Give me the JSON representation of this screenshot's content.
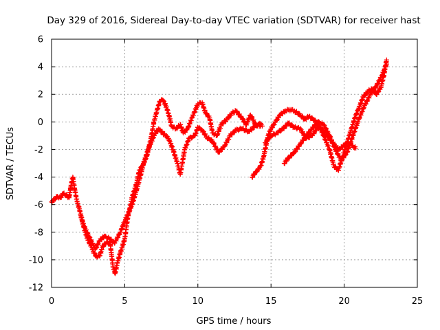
{
  "chart_data": {
    "type": "scatter",
    "title": "Day 329 of 2016, Sidereal Day-to-day VTEC variation (SDTVAR) for receiver hast",
    "xlabel": "GPS time / hours",
    "ylabel": "SDTVAR / TECUs",
    "xlim": [
      0,
      25
    ],
    "ylim": [
      -12,
      6
    ],
    "xticks": [
      0,
      5,
      10,
      15,
      20,
      25
    ],
    "yticks": [
      -12,
      -10,
      -8,
      -6,
      -4,
      -2,
      0,
      2,
      4,
      6
    ],
    "grid": true,
    "marker": "+",
    "series": [
      {
        "name": "SDTVAR",
        "color": "#ff0000",
        "traces": [
          {
            "x": [
              0,
              0.2,
              0.4,
              0.6,
              0.8,
              1.0,
              1.2,
              1.3,
              1.45,
              1.6,
              1.75,
              1.9,
              2.1,
              2.3,
              2.5,
              2.7,
              2.9,
              3.1,
              3.3,
              3.5,
              3.8,
              4.0,
              4.2,
              4.35,
              4.5,
              4.7,
              5.0,
              5.2,
              5.5,
              5.8,
              6.0,
              6.2,
              6.5,
              6.8,
              7.0,
              7.2,
              7.4,
              7.6,
              7.8,
              8.0,
              8.2,
              8.5,
              8.8,
              9.0,
              9.3,
              9.6,
              10.0,
              10.3,
              10.5,
              10.8,
              11.0,
              11.3,
              11.6,
              12.0,
              12.3,
              12.6,
              13.0,
              13.3,
              13.6,
              14.0,
              14.3
            ],
            "y": [
              -5.8,
              -5.6,
              -5.4,
              -5.5,
              -5.2,
              -5.3,
              -5.5,
              -4.8,
              -4.0,
              -5.0,
              -5.8,
              -6.3,
              -7.2,
              -8.0,
              -8.6,
              -9.0,
              -9.5,
              -9.8,
              -9.7,
              -9.0,
              -8.7,
              -8.8,
              -10.5,
              -11.0,
              -10.2,
              -9.5,
              -8.5,
              -7.0,
              -5.5,
              -4.5,
              -3.5,
              -3.2,
              -2.5,
              -1.2,
              0.0,
              0.8,
              1.5,
              1.6,
              1.2,
              0.6,
              -0.3,
              -0.5,
              -0.2,
              -0.8,
              -0.5,
              0.3,
              1.3,
              1.4,
              0.7,
              0.3,
              -0.8,
              -1.0,
              -0.2,
              0.2,
              0.6,
              0.8,
              0.3,
              -0.2,
              0.5,
              -0.3,
              -0.1
            ]
          },
          {
            "x": [
              2.0,
              2.2,
              2.5,
              2.8,
              3.0,
              3.3,
              3.6,
              4.0,
              4.3,
              4.7,
              5.0,
              5.3,
              5.5,
              5.8,
              6.0,
              6.3,
              6.6,
              7.0,
              7.3,
              7.6,
              8.0,
              8.3,
              8.6,
              8.8,
              9.1,
              9.4,
              9.8,
              10.0,
              10.3,
              10.6,
              11.0,
              11.4,
              11.8,
              12.2,
              12.6,
              13.0,
              13.5,
              14.0,
              14.4
            ],
            "y": [
              -6.8,
              -7.5,
              -8.2,
              -8.8,
              -9.2,
              -8.6,
              -8.3,
              -8.5,
              -8.8,
              -8.0,
              -7.2,
              -6.5,
              -6.0,
              -5.0,
              -4.2,
              -3.0,
              -2.0,
              -1.0,
              -0.5,
              -0.8,
              -1.2,
              -2.0,
              -3.0,
              -3.8,
              -2.0,
              -1.2,
              -1.0,
              -0.4,
              -0.6,
              -1.1,
              -1.4,
              -2.2,
              -1.8,
              -1.0,
              -0.6,
              -0.5,
              -0.7,
              -0.2,
              -0.3
            ]
          },
          {
            "x": [
              13.7,
              14.0,
              14.3,
              14.5,
              14.8,
              15.0,
              15.3,
              15.6,
              16.0,
              16.3,
              16.6,
              17.0,
              17.3,
              17.6,
              18.0,
              18.3,
              18.6,
              19.0,
              19.3,
              19.6,
              19.9,
              20.2,
              20.5,
              20.8,
              21.0,
              21.3,
              21.6,
              21.9,
              22.2,
              22.5,
              22.7,
              22.9
            ],
            "y": [
              -4.0,
              -3.6,
              -3.2,
              -2.5,
              -1.0,
              -0.5,
              0.0,
              0.5,
              0.8,
              0.9,
              0.8,
              0.5,
              0.2,
              0.4,
              0.1,
              -0.3,
              -1.0,
              -2.0,
              -3.2,
              -3.5,
              -2.5,
              -1.5,
              -0.5,
              0.5,
              1.0,
              1.8,
              2.2,
              2.4,
              2.0,
              2.5,
              3.3,
              4.5
            ]
          },
          {
            "x": [
              14.6,
              15.0,
              15.4,
              15.8,
              16.2,
              16.6,
              17.0,
              17.4,
              17.8,
              18.2,
              18.6,
              19.0,
              19.3,
              19.6,
              19.9,
              20.2,
              20.5,
              20.8
            ],
            "y": [
              -1.5,
              -1.0,
              -0.8,
              -0.5,
              -0.1,
              -0.4,
              -0.5,
              -1.2,
              -1.0,
              -0.4,
              -0.6,
              -1.2,
              -1.6,
              -2.0,
              -1.8,
              -1.5,
              -1.7,
              -1.9
            ]
          },
          {
            "x": [
              15.9,
              16.2,
              16.6,
              17.0,
              17.4,
              17.8,
              18.2,
              18.6,
              19.0,
              19.4,
              19.8,
              20.2,
              20.6,
              21.0,
              21.4,
              21.8,
              22.2,
              22.6,
              22.9
            ],
            "y": [
              -3.0,
              -2.6,
              -2.2,
              -1.6,
              -1.0,
              -0.5,
              0.0,
              -0.2,
              -1.0,
              -2.0,
              -2.8,
              -2.2,
              -1.0,
              0.2,
              1.2,
              2.0,
              2.6,
              3.4,
              4.2
            ]
          }
        ]
      }
    ]
  }
}
